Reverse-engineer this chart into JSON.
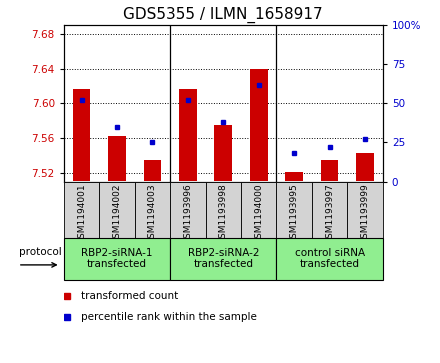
{
  "title": "GDS5355 / ILMN_1658917",
  "samples": [
    "GSM1194001",
    "GSM1194002",
    "GSM1194003",
    "GSM1193996",
    "GSM1193998",
    "GSM1194000",
    "GSM1193995",
    "GSM1193997",
    "GSM1193999"
  ],
  "red_values": [
    7.617,
    7.562,
    7.535,
    7.617,
    7.575,
    7.64,
    7.521,
    7.535,
    7.543
  ],
  "blue_values": [
    52,
    35,
    25,
    52,
    38,
    62,
    18,
    22,
    27
  ],
  "groups": [
    {
      "label": "RBP2-siRNA-1\ntransfected",
      "start": 0,
      "end": 3,
      "color": "#90ee90"
    },
    {
      "label": "RBP2-siRNA-2\ntransfected",
      "start": 3,
      "end": 6,
      "color": "#90ee90"
    },
    {
      "label": "control siRNA\ntransfected",
      "start": 6,
      "end": 9,
      "color": "#90ee90"
    }
  ],
  "ylim_left": [
    7.51,
    7.69
  ],
  "ylim_right": [
    0,
    100
  ],
  "yticks_left": [
    7.52,
    7.56,
    7.6,
    7.64,
    7.68
  ],
  "yticks_right": [
    0,
    25,
    50,
    75,
    100
  ],
  "bar_color": "#cc0000",
  "dot_color": "#0000cc",
  "bar_width": 0.5,
  "background_plot": "#ffffff",
  "background_xtick": "#d3d3d3",
  "grid_color": "#000000",
  "title_fontsize": 11,
  "tick_fontsize": 7.5,
  "legend_fontsize": 7.5
}
